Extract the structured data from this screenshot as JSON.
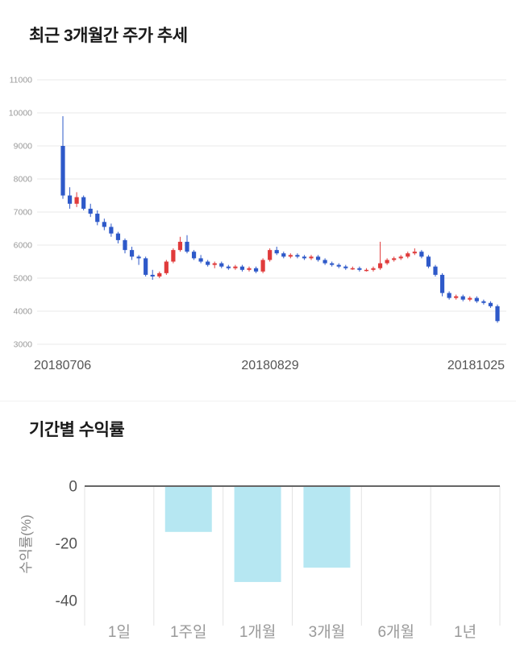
{
  "section_price": {
    "title": "최근 3개월간 주가 추세"
  },
  "section_returns": {
    "title": "기간별 수익률"
  },
  "colors": {
    "up_candle": "#e03b3b",
    "down_candle": "#2e59c9",
    "grid": "#e8e8e8",
    "bar_fill": "#b6e7f2",
    "axis_dark": "#666666",
    "tick_text": "#999999",
    "date_text": "#555555",
    "category_text": "#999999"
  },
  "chart_data": [
    {
      "type": "candlestick",
      "title": "최근 3개월간 주가 추세",
      "ylim": [
        3000,
        11000
      ],
      "y_ticks": [
        3000,
        4000,
        5000,
        6000,
        7000,
        8000,
        9000,
        10000,
        11000
      ],
      "x_labels": [
        "20180706",
        "20180829",
        "20181025"
      ],
      "grid": true,
      "ohlc": [
        [
          9000,
          9900,
          7400,
          7500
        ],
        [
          7500,
          7750,
          7100,
          7250
        ],
        [
          7250,
          7600,
          7150,
          7450
        ],
        [
          7450,
          7500,
          7050,
          7100
        ],
        [
          7100,
          7250,
          6850,
          6950
        ],
        [
          6950,
          7050,
          6600,
          6700
        ],
        [
          6700,
          6800,
          6450,
          6550
        ],
        [
          6550,
          6650,
          6250,
          6350
        ],
        [
          6350,
          6400,
          6050,
          6150
        ],
        [
          6150,
          6200,
          5750,
          5850
        ],
        [
          5850,
          5950,
          5550,
          5650
        ],
        [
          5650,
          5700,
          5400,
          5600
        ],
        [
          5600,
          5650,
          5050,
          5100
        ],
        [
          5100,
          5250,
          4950,
          5050
        ],
        [
          5050,
          5200,
          5000,
          5150
        ],
        [
          5150,
          5550,
          5100,
          5500
        ],
        [
          5500,
          5900,
          5450,
          5850
        ],
        [
          5850,
          6250,
          5800,
          6100
        ],
        [
          6100,
          6300,
          5750,
          5800
        ],
        [
          5800,
          5850,
          5550,
          5600
        ],
        [
          5600,
          5700,
          5450,
          5500
        ],
        [
          5500,
          5550,
          5350,
          5400
        ],
        [
          5400,
          5500,
          5300,
          5450
        ],
        [
          5450,
          5500,
          5300,
          5350
        ],
        [
          5350,
          5400,
          5250,
          5300
        ],
        [
          5300,
          5400,
          5250,
          5350
        ],
        [
          5350,
          5400,
          5200,
          5250
        ],
        [
          5250,
          5350,
          5200,
          5300
        ],
        [
          5300,
          5350,
          5150,
          5200
        ],
        [
          5200,
          5600,
          5150,
          5550
        ],
        [
          5550,
          5900,
          5500,
          5850
        ],
        [
          5850,
          5950,
          5700,
          5750
        ],
        [
          5750,
          5800,
          5600,
          5650
        ],
        [
          5650,
          5750,
          5600,
          5700
        ],
        [
          5700,
          5750,
          5600,
          5650
        ],
        [
          5650,
          5700,
          5550,
          5600
        ],
        [
          5600,
          5700,
          5550,
          5650
        ],
        [
          5650,
          5700,
          5500,
          5550
        ],
        [
          5550,
          5600,
          5400,
          5450
        ],
        [
          5450,
          5500,
          5350,
          5400
        ],
        [
          5400,
          5450,
          5300,
          5350
        ],
        [
          5350,
          5400,
          5250,
          5300
        ],
        [
          5300,
          5350,
          5250,
          5300
        ],
        [
          5300,
          5350,
          5200,
          5250
        ],
        [
          5250,
          5300,
          5200,
          5250
        ],
        [
          5250,
          5350,
          5200,
          5300
        ],
        [
          5300,
          6100,
          5250,
          5450
        ],
        [
          5450,
          5600,
          5400,
          5550
        ],
        [
          5550,
          5650,
          5500,
          5600
        ],
        [
          5600,
          5700,
          5550,
          5650
        ],
        [
          5650,
          5800,
          5600,
          5750
        ],
        [
          5750,
          5900,
          5700,
          5800
        ],
        [
          5800,
          5850,
          5600,
          5650
        ],
        [
          5650,
          5700,
          5300,
          5350
        ],
        [
          5350,
          5400,
          5050,
          5100
        ],
        [
          5100,
          5150,
          4450,
          4550
        ],
        [
          4550,
          4600,
          4350,
          4400
        ],
        [
          4400,
          4500,
          4350,
          4450
        ],
        [
          4450,
          4500,
          4300,
          4350
        ],
        [
          4350,
          4450,
          4300,
          4400
        ],
        [
          4400,
          4450,
          4250,
          4300
        ],
        [
          4300,
          4350,
          4200,
          4250
        ],
        [
          4250,
          4300,
          4100,
          4150
        ],
        [
          4150,
          4200,
          3650,
          3700
        ]
      ]
    },
    {
      "type": "bar",
      "title": "기간별 수익률",
      "ylabel": "수익률(%)",
      "categories": [
        "1일",
        "1주일",
        "1개월",
        "3개월",
        "6개월",
        "1년"
      ],
      "values": [
        0,
        -16,
        -33.5,
        -28.5,
        null,
        null
      ],
      "y_ticks": [
        0,
        -20,
        -40
      ],
      "ylim": [
        -40,
        0
      ],
      "grid": false,
      "legend": "none"
    }
  ]
}
